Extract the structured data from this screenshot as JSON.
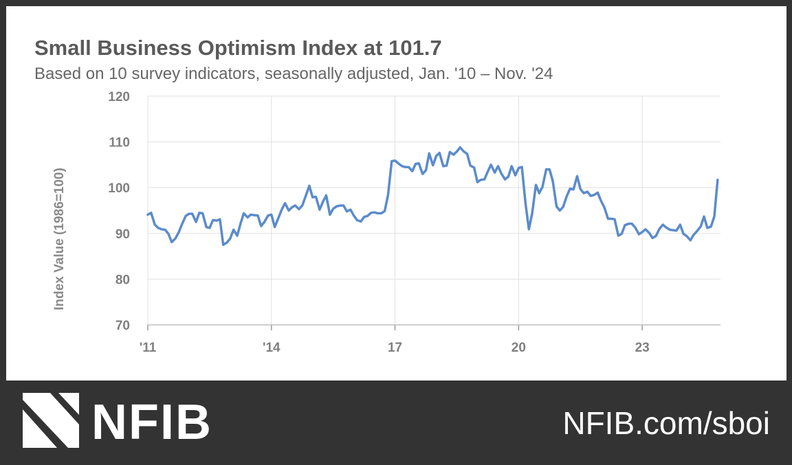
{
  "header": {
    "title": "Small Business Optimism Index at 101.7",
    "subtitle": "Based on 10 survey indicators, seasonally adjusted,  Jan. '10 – Nov. '24"
  },
  "footer": {
    "brand": "NFIB",
    "url": "NFIB.com/sboi"
  },
  "colors": {
    "line": "#5b8bcb",
    "grid": "#e0e0e0",
    "footer_bg": "#333333"
  },
  "chart_data": {
    "type": "line",
    "title": "Small Business Optimism Index at 101.7",
    "subtitle": "Based on 10 survey indicators, seasonally adjusted,  Jan. '10 – Nov. '24",
    "xlabel": "",
    "ylabel": "Index Value (1986=100)",
    "ylim": [
      70,
      120
    ],
    "yticks": [
      70,
      80,
      90,
      100,
      110,
      120
    ],
    "xlim": [
      2011.0,
      2024.9
    ],
    "xticks": [
      {
        "value": 2011,
        "label": "'11"
      },
      {
        "value": 2014,
        "label": "'14"
      },
      {
        "value": 2017,
        "label": "17"
      },
      {
        "value": 2020,
        "label": "20"
      },
      {
        "value": 2023,
        "label": "23"
      }
    ],
    "grid": true,
    "series": [
      {
        "name": "Small Business Optimism Index",
        "x": [
          2011.0,
          2011.08,
          2011.17,
          2011.25,
          2011.33,
          2011.42,
          2011.5,
          2011.58,
          2011.67,
          2011.75,
          2011.83,
          2011.92,
          2012.0,
          2012.08,
          2012.17,
          2012.25,
          2012.33,
          2012.42,
          2012.5,
          2012.58,
          2012.67,
          2012.75,
          2012.83,
          2012.92,
          2013.0,
          2013.08,
          2013.17,
          2013.25,
          2013.33,
          2013.42,
          2013.5,
          2013.58,
          2013.67,
          2013.75,
          2013.83,
          2013.92,
          2014.0,
          2014.08,
          2014.17,
          2014.25,
          2014.33,
          2014.42,
          2014.5,
          2014.58,
          2014.67,
          2014.75,
          2014.83,
          2014.92,
          2015.0,
          2015.08,
          2015.17,
          2015.25,
          2015.33,
          2015.42,
          2015.5,
          2015.58,
          2015.67,
          2015.75,
          2015.83,
          2015.92,
          2016.0,
          2016.08,
          2016.17,
          2016.25,
          2016.33,
          2016.42,
          2016.5,
          2016.58,
          2016.67,
          2016.75,
          2016.83,
          2016.92,
          2017.0,
          2017.08,
          2017.17,
          2017.25,
          2017.33,
          2017.42,
          2017.5,
          2017.58,
          2017.67,
          2017.75,
          2017.83,
          2017.92,
          2018.0,
          2018.08,
          2018.17,
          2018.25,
          2018.33,
          2018.42,
          2018.5,
          2018.58,
          2018.67,
          2018.75,
          2018.83,
          2018.92,
          2019.0,
          2019.08,
          2019.17,
          2019.25,
          2019.33,
          2019.42,
          2019.5,
          2019.58,
          2019.67,
          2019.75,
          2019.83,
          2019.92,
          2020.0,
          2020.08,
          2020.17,
          2020.25,
          2020.33,
          2020.42,
          2020.5,
          2020.58,
          2020.67,
          2020.75,
          2020.83,
          2020.92,
          2021.0,
          2021.08,
          2021.17,
          2021.25,
          2021.33,
          2021.42,
          2021.5,
          2021.58,
          2021.67,
          2021.75,
          2021.83,
          2021.92,
          2022.0,
          2022.08,
          2022.17,
          2022.25,
          2022.33,
          2022.42,
          2022.5,
          2022.58,
          2022.67,
          2022.75,
          2022.83,
          2022.92,
          2023.0,
          2023.08,
          2023.17,
          2023.25,
          2023.33,
          2023.42,
          2023.5,
          2023.58,
          2023.67,
          2023.75,
          2023.83,
          2023.92,
          2024.0,
          2024.08,
          2024.17,
          2024.25,
          2024.33,
          2024.42,
          2024.5,
          2024.58,
          2024.67,
          2024.75,
          2024.83
        ],
        "values": [
          94.1,
          94.5,
          91.9,
          91.2,
          90.9,
          90.8,
          89.9,
          88.1,
          88.9,
          90.2,
          92.0,
          93.8,
          94.3,
          94.3,
          92.5,
          94.5,
          94.4,
          91.4,
          91.2,
          92.9,
          92.8,
          93.1,
          87.5,
          88.0,
          88.9,
          90.8,
          89.5,
          92.1,
          94.4,
          93.5,
          94.1,
          94.0,
          93.9,
          91.6,
          92.5,
          93.9,
          94.1,
          91.4,
          93.4,
          95.2,
          96.6,
          95.0,
          95.7,
          96.1,
          95.3,
          96.1,
          98.1,
          100.4,
          97.9,
          98.0,
          95.2,
          96.9,
          98.3,
          94.1,
          95.4,
          95.9,
          96.1,
          96.1,
          94.8,
          95.2,
          93.9,
          92.9,
          92.6,
          93.6,
          93.8,
          94.5,
          94.6,
          94.4,
          94.4,
          94.9,
          98.4,
          105.8,
          105.9,
          105.3,
          104.7,
          104.5,
          104.5,
          103.6,
          105.2,
          105.3,
          103.0,
          103.8,
          107.5,
          104.9,
          106.9,
          107.6,
          104.7,
          104.8,
          107.8,
          107.2,
          107.9,
          108.8,
          107.9,
          107.4,
          104.8,
          104.4,
          101.2,
          101.7,
          101.8,
          103.5,
          105.0,
          103.3,
          104.7,
          103.1,
          101.8,
          102.4,
          104.7,
          102.7,
          104.3,
          104.5,
          96.4,
          90.9,
          94.4,
          100.6,
          98.8,
          100.2,
          104.0,
          104.0,
          101.4,
          95.9,
          95.0,
          95.8,
          98.2,
          99.8,
          99.6,
          102.5,
          99.7,
          98.8,
          99.1,
          98.2,
          98.4,
          98.9,
          97.1,
          95.7,
          93.2,
          93.2,
          93.1,
          89.5,
          89.9,
          91.8,
          92.1,
          92.1,
          91.3,
          89.8,
          90.3,
          90.9,
          90.1,
          89.0,
          89.4,
          91.0,
          91.9,
          91.3,
          90.8,
          90.7,
          90.6,
          91.9,
          89.9,
          89.4,
          88.5,
          89.7,
          90.5,
          91.5,
          93.7,
          91.2,
          91.5,
          93.7,
          101.7
        ]
      }
    ]
  }
}
